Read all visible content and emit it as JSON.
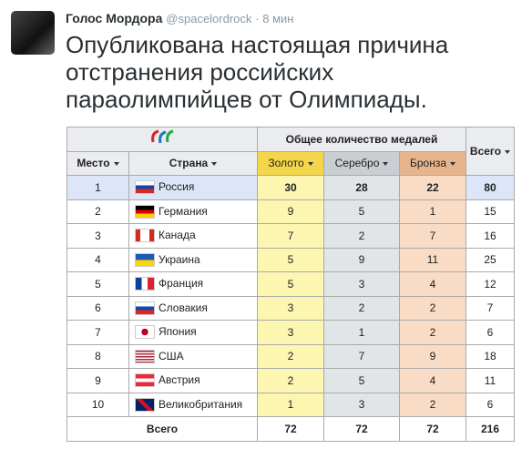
{
  "tweet": {
    "author": "Голос Мордора",
    "handle": "@spacelordrock",
    "time": "· 8 мин",
    "text_lines": [
      "Опубликована настоящая причина",
      "отстранения российских",
      "параолимпийцев от Олимпиады."
    ]
  },
  "table": {
    "group_header": "Общее количество медалей",
    "columns": [
      "Место",
      "Страна",
      "Золото",
      "Серебро",
      "Бронза",
      "Всего"
    ],
    "rows": [
      [
        1,
        "Россия",
        30,
        28,
        22,
        80
      ],
      [
        2,
        "Германия",
        9,
        5,
        1,
        15
      ],
      [
        3,
        "Канада",
        7,
        2,
        7,
        16
      ],
      [
        4,
        "Украина",
        5,
        9,
        11,
        25
      ],
      [
        5,
        "Франция",
        5,
        3,
        4,
        12
      ],
      [
        6,
        "Словакия",
        3,
        2,
        2,
        7
      ],
      [
        7,
        "Япония",
        3,
        1,
        2,
        6
      ],
      [
        8,
        "США",
        2,
        7,
        9,
        18
      ],
      [
        9,
        "Австрия",
        2,
        5,
        4,
        11
      ],
      [
        10,
        "Великобритания",
        1,
        3,
        2,
        6
      ]
    ],
    "total_label": "Всего",
    "totals": [
      72,
      72,
      72,
      216
    ]
  }
}
